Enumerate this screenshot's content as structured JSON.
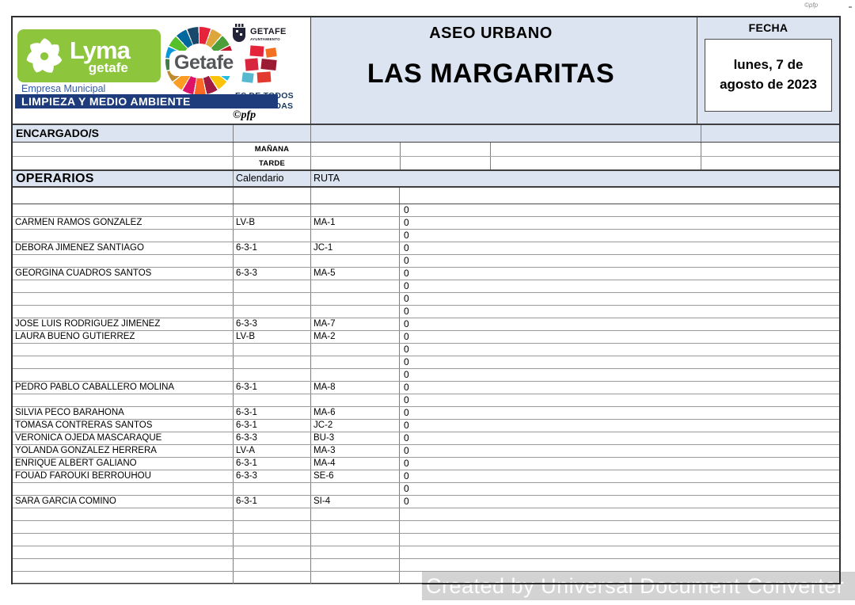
{
  "page": {
    "pfp_top": "©pfp"
  },
  "branding": {
    "lyma": {
      "word": "Lyma",
      "sub": "getafe",
      "green": "#8dc63d"
    },
    "empresa": "Empresa Municipal",
    "limpieza": "LIMPIEZA Y MEDIO AMBIENTE",
    "pfp": "©pfp",
    "getafe": {
      "wordmark": "Getafe",
      "crest_title": "GETAFE",
      "crest_sub": "AYUNTAMIENTO",
      "tagline1": "ES DE TODOS",
      "tagline2": "ES DE TODAS",
      "sdg_palette": [
        "#e5243b",
        "#dda63a",
        "#4c9f38",
        "#c5192d",
        "#ff3a21",
        "#26bde2",
        "#fcc30b",
        "#a21942",
        "#fd6925",
        "#dd1367",
        "#fd9d24",
        "#bf8b2e",
        "#3f7e44",
        "#0a97d9",
        "#56c02b",
        "#00689d",
        "#19486a"
      ]
    }
  },
  "header": {
    "section": "ASEO URBANO",
    "title": "LAS MARGARITAS",
    "fecha_label": "FECHA",
    "fecha_value": "lunes, 7 de agosto de 2023"
  },
  "encargados": {
    "label": "ENCARGADO/S",
    "manana": "MAÑANA",
    "tarde": "TARDE"
  },
  "operarios": {
    "label": "OPERARIOS",
    "calendario_label": "Calendario",
    "ruta_label": "RUTA",
    "rows": [
      {
        "tall": true,
        "name": "",
        "cal": "",
        "ruta": "",
        "val": ""
      },
      {
        "name": "",
        "cal": "",
        "ruta": "",
        "val": "0"
      },
      {
        "name": "CARMEN RAMOS GONZALEZ",
        "cal": "LV-B",
        "ruta": "MA-1",
        "val": "0"
      },
      {
        "name": "",
        "cal": "",
        "ruta": "",
        "val": "0"
      },
      {
        "name": "DEBORA JIMENEZ SANTIAGO",
        "cal": "6-3-1",
        "ruta": "JC-1",
        "val": "0"
      },
      {
        "name": "",
        "cal": "",
        "ruta": "",
        "val": "0"
      },
      {
        "name": "GEORGINA CUADROS SANTOS",
        "cal": "6-3-3",
        "ruta": "MA-5",
        "val": "0"
      },
      {
        "name": "",
        "cal": "",
        "ruta": "",
        "val": "0"
      },
      {
        "name": "",
        "cal": "",
        "ruta": "",
        "val": "0"
      },
      {
        "name": "",
        "cal": "",
        "ruta": "",
        "val": "0"
      },
      {
        "name": "JOSE LUIS RODRIGUEZ JIMENEZ",
        "cal": "6-3-3",
        "ruta": "MA-7",
        "val": "0"
      },
      {
        "name": "LAURA BUENO GUTIERREZ",
        "cal": "LV-B",
        "ruta": "MA-2",
        "val": "0"
      },
      {
        "name": "",
        "cal": "",
        "ruta": "",
        "val": "0"
      },
      {
        "name": "",
        "cal": "",
        "ruta": "",
        "val": "0"
      },
      {
        "name": "",
        "cal": "",
        "ruta": "",
        "val": "0"
      },
      {
        "name": "PEDRO PABLO CABALLERO MOLINA",
        "cal": "6-3-1",
        "ruta": "MA-8",
        "val": "0"
      },
      {
        "name": "",
        "cal": "",
        "ruta": "",
        "val": "0"
      },
      {
        "name": "SILVIA PECO BARAHONA",
        "cal": "6-3-1",
        "ruta": "MA-6",
        "val": "0"
      },
      {
        "name": "TOMASA CONTRERAS SANTOS",
        "cal": "6-3-1",
        "ruta": "JC-2",
        "val": "0"
      },
      {
        "name": "VERONICA OJEDA MASCARAQUE",
        "cal": "6-3-3",
        "ruta": "BU-3",
        "val": "0"
      },
      {
        "name": "YOLANDA GONZALEZ HERRERA",
        "cal": "LV-A",
        "ruta": "MA-3",
        "val": "0"
      },
      {
        "name": "ENRIQUE ALBERT GALIANO",
        "cal": "6-3-1",
        "ruta": "MA-4",
        "val": "0"
      },
      {
        "name": "FOUAD FAROUKI BERROUHOU",
        "cal": "6-3-3",
        "ruta": "SE-6",
        "val": "0"
      },
      {
        "name": "",
        "cal": "",
        "ruta": "",
        "val": "0"
      },
      {
        "name": "SARA GARCIA COMINO",
        "cal": "6-3-1",
        "ruta": "SI-4",
        "val": "0"
      },
      {
        "name": "",
        "cal": "",
        "ruta": "",
        "val": ""
      },
      {
        "name": "",
        "cal": "",
        "ruta": "",
        "val": ""
      },
      {
        "name": "",
        "cal": "",
        "ruta": "",
        "val": ""
      },
      {
        "name": "",
        "cal": "",
        "ruta": "",
        "val": ""
      },
      {
        "name": "",
        "cal": "",
        "ruta": "",
        "val": ""
      },
      {
        "name": "",
        "cal": "",
        "ruta": "",
        "val": ""
      }
    ]
  },
  "watermark": {
    "text": "Created by Universal Document Converter"
  },
  "colors": {
    "header_blue_bg": "#dbe4f0",
    "limpieza_navy": "#1e3c7b",
    "empresa_blue": "#2f5aa8",
    "tagline_navy": "#17365d",
    "lyma_green": "#8dc63d",
    "watermark_gray": "#d3d3d3"
  }
}
